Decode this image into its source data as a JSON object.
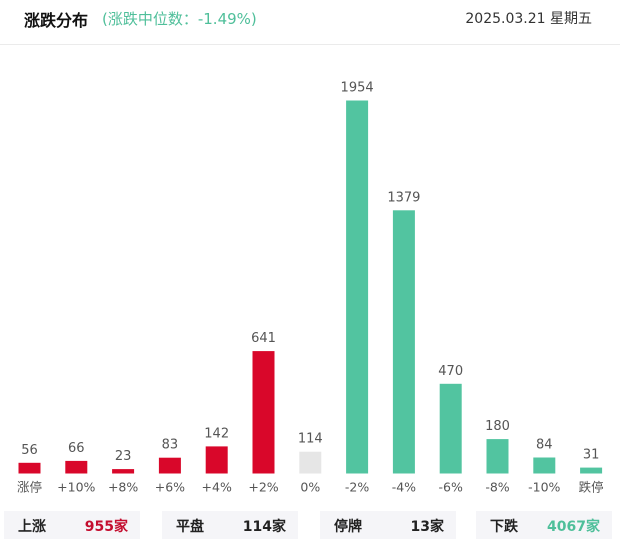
{
  "header": {
    "title": "涨跌分布",
    "subtitle": "(涨跌中位数：-1.49%)",
    "date": "2025.03.21 星期五"
  },
  "colors": {
    "up": "#d9072a",
    "flat": "#e6e6e6",
    "down": "#52c4a0",
    "label": "#555555",
    "up_text": "#c40e2f",
    "down_text": "#4fbf9a",
    "flat_text": "#222222"
  },
  "chart_data": {
    "type": "bar",
    "categories": [
      "涨停",
      "+10%",
      "+8%",
      "+6%",
      "+4%",
      "+2%",
      "0%",
      "-2%",
      "-4%",
      "-6%",
      "-8%",
      "-10%",
      "跌停"
    ],
    "values": [
      56,
      66,
      23,
      83,
      142,
      641,
      114,
      1954,
      1379,
      470,
      180,
      84,
      31
    ],
    "value_labels": [
      "56",
      "66",
      "23",
      "83",
      "142",
      "641",
      "114",
      "1954",
      "1379",
      "470",
      "180",
      "84",
      "31"
    ],
    "bar_colors": [
      "up",
      "up",
      "up",
      "up",
      "up",
      "up",
      "flat",
      "down",
      "down",
      "down",
      "down",
      "down",
      "down"
    ],
    "title": "",
    "xlabel": "",
    "ylabel": "",
    "grid": false,
    "legend": false
  },
  "summary": [
    {
      "label": "上涨",
      "value": "955家",
      "color": "up"
    },
    {
      "label": "平盘",
      "value": "114家",
      "color": "flat"
    },
    {
      "label": "停牌",
      "value": "13家",
      "color": "flat"
    },
    {
      "label": "下跌",
      "value": "4067家",
      "color": "down"
    }
  ]
}
